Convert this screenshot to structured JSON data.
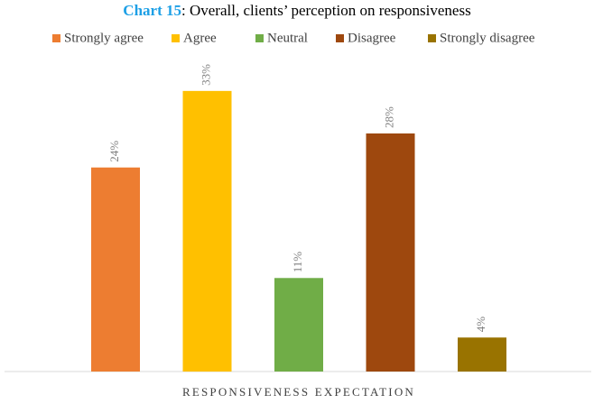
{
  "chart_data": {
    "type": "bar",
    "title_prefix": "Chart 15",
    "title": ": Overall, clients’ perception on responsiveness",
    "categories": [
      "RESPONSIVENESS EXPECTATION"
    ],
    "series": [
      {
        "name": "Strongly agree",
        "color": "#ed7d31",
        "values": [
          24
        ],
        "value_labels": [
          "24%"
        ]
      },
      {
        "name": "Agree",
        "color": "#ffc000",
        "values": [
          33
        ],
        "value_labels": [
          "33%"
        ]
      },
      {
        "name": "Neutral",
        "color": "#70ad47",
        "values": [
          11
        ],
        "value_labels": [
          "11%"
        ]
      },
      {
        "name": "Disagree",
        "color": "#9e480e",
        "values": [
          28
        ],
        "value_labels": [
          "28%"
        ]
      },
      {
        "name": "Strongly disagree",
        "color": "#997300",
        "values": [
          4
        ],
        "value_labels": [
          "4%"
        ]
      }
    ],
    "ylim": [
      0,
      35
    ],
    "legend": "top"
  }
}
